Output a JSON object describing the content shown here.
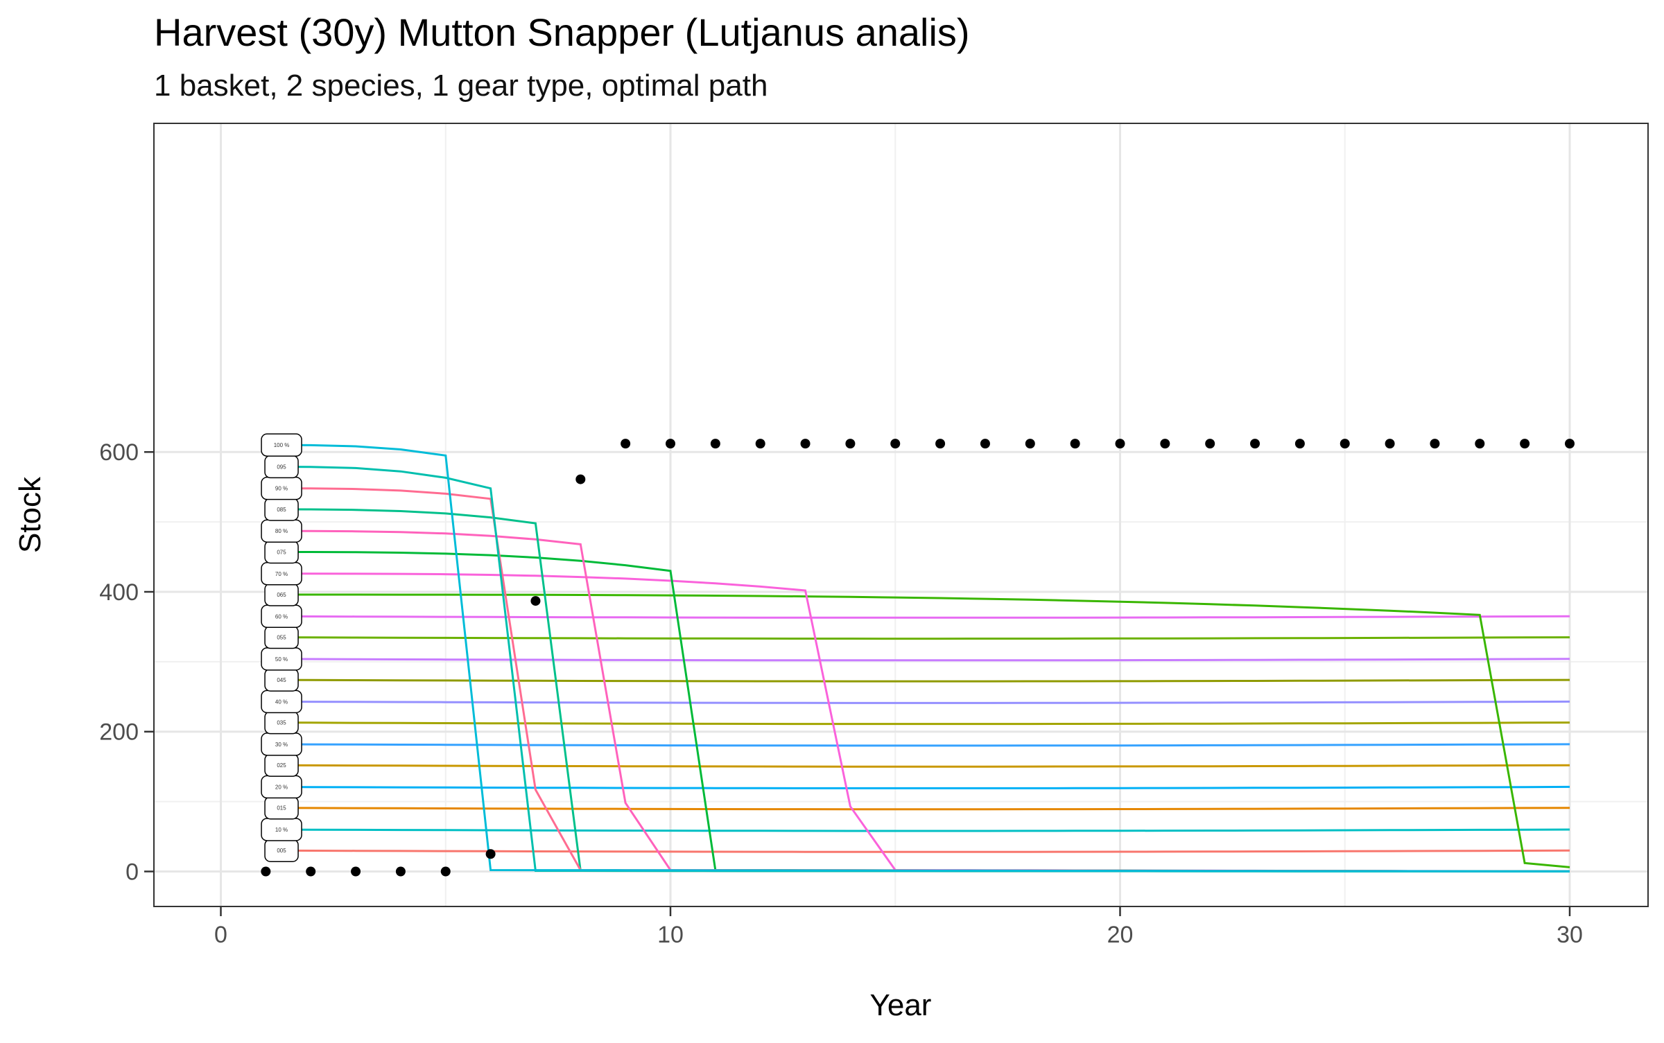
{
  "chart_data": {
    "type": "line",
    "title": "Harvest (30y) Mutton Snapper (Lutjanus analis)",
    "subtitle": "1 basket, 2 species, 1 gear type, optimal path",
    "xlabel": "Year",
    "ylabel": "Stock",
    "xlim": [
      -1.5,
      31.5
    ],
    "ylim": [
      -30,
      640
    ],
    "x_ticks": [
      0,
      10,
      20,
      30
    ],
    "y_ticks": [
      0,
      200,
      400,
      600
    ],
    "grid": true,
    "legend": "none",
    "series": [
      {
        "name": "005",
        "color": "#F8766D",
        "level": 30,
        "crash": null
      },
      {
        "name": "10 %",
        "color": "#00BFC4",
        "level": 60,
        "crash": null
      },
      {
        "name": "015",
        "color": "#E58700",
        "level": 91,
        "crash": null
      },
      {
        "name": "20 %",
        "color": "#00B0F6",
        "level": 121,
        "crash": null
      },
      {
        "name": "025",
        "color": "#C99800",
        "level": 152,
        "crash": null
      },
      {
        "name": "30 %",
        "color": "#35A2FF",
        "level": 182,
        "crash": null
      },
      {
        "name": "035",
        "color": "#A3A500",
        "level": 213,
        "crash": null
      },
      {
        "name": "40 %",
        "color": "#9590FF",
        "level": 243,
        "crash": null
      },
      {
        "name": "045",
        "color": "#8F9A00",
        "level": 274,
        "crash": null
      },
      {
        "name": "50 %",
        "color": "#C77CFF",
        "level": 304,
        "crash": null
      },
      {
        "name": "055",
        "color": "#6BB100",
        "level": 335,
        "crash": null
      },
      {
        "name": "60 %",
        "color": "#E76BF3",
        "level": 365,
        "crash": null
      },
      {
        "name": "065",
        "color": "#39B600",
        "level": 396,
        "crash": [
          28,
          367,
          29,
          12,
          30,
          6
        ]
      },
      {
        "name": "70 %",
        "color": "#FA62DB",
        "level": 426,
        "crash": [
          13,
          402,
          14,
          93,
          15,
          2
        ]
      },
      {
        "name": "075",
        "color": "#00BA38",
        "level": 457,
        "crash": [
          10,
          430,
          11,
          2
        ]
      },
      {
        "name": "80 %",
        "color": "#FF62BC",
        "level": 487,
        "crash": [
          8,
          468,
          9,
          98,
          10,
          2
        ]
      },
      {
        "name": "085",
        "color": "#00C08B",
        "level": 518,
        "crash": [
          7,
          498,
          8,
          1
        ]
      },
      {
        "name": "90 %",
        "color": "#FF6C91",
        "level": 548,
        "crash": [
          6,
          533,
          7,
          117,
          8,
          2
        ]
      },
      {
        "name": "095",
        "color": "#00BFAE",
        "level": 579,
        "crash": [
          6,
          548,
          7,
          1
        ]
      },
      {
        "name": "100 %",
        "color": "#00BCD8",
        "level": 610,
        "crash": [
          5,
          595,
          6,
          2
        ]
      }
    ],
    "optimal_path": {
      "x": [
        1,
        2,
        3,
        4,
        5,
        6,
        7,
        8,
        9,
        10,
        11,
        12,
        13,
        14,
        15,
        16,
        17,
        18,
        19,
        20,
        21,
        22,
        23,
        24,
        25,
        26,
        27,
        28,
        29,
        30
      ],
      "y": [
        0,
        0,
        0,
        0,
        0,
        25,
        387,
        561,
        612,
        612,
        612,
        612,
        612,
        612,
        612,
        612,
        612,
        612,
        612,
        612,
        612,
        612,
        612,
        612,
        612,
        612,
        612,
        612,
        612,
        612
      ]
    }
  }
}
